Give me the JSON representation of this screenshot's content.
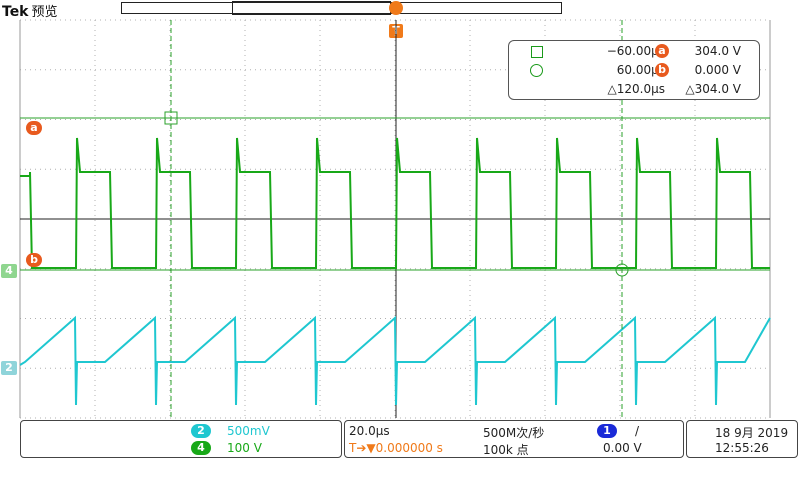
{
  "header": {
    "brand": "Tek",
    "mode": "预览",
    "trigger_marker": "T"
  },
  "cursor_readout": {
    "cursor1_time": "−60.00µs",
    "cursor1_value_label": "a",
    "cursor1_value": "304.0 V",
    "cursor2_time": "60.00µs",
    "cursor2_value_label": "b",
    "cursor2_value": "0.000 V",
    "delta_time": "△120.0µs",
    "delta_value": "△304.0 V"
  },
  "markers": {
    "a": "a",
    "b": "b",
    "ch4": "4",
    "ch2": "2"
  },
  "channels": {
    "ch2": {
      "number": "2",
      "scale": "500mV",
      "color": "#1fc7d0"
    },
    "ch4": {
      "number": "4",
      "scale": "100 V",
      "color": "#18a818"
    }
  },
  "timebase": {
    "scale": "20.0µs",
    "trigger_position": "T➔▼0.000000 s",
    "sample_rate": "500M次/秒",
    "record_length": "100k 点",
    "trigger_channel": "1",
    "trigger_slope": "/",
    "trigger_level": "0.00 V"
  },
  "datetime": {
    "date": "18 9月 2019",
    "time": "12:55:26"
  },
  "colors": {
    "ch4_trace": "#18a818",
    "ch2_trace": "#1fc7d0",
    "cursor": "#2aa02a",
    "trigger": "#f07a1a",
    "marker": "#e85a1e"
  }
}
